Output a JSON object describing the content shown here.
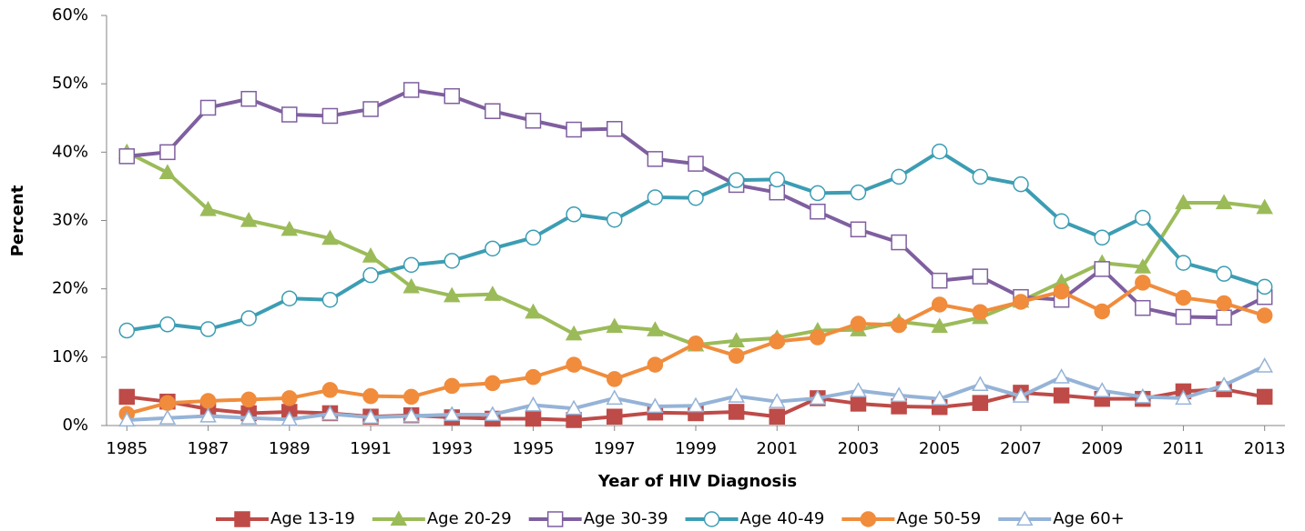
{
  "chart_data": {
    "type": "line",
    "x_label": "Year of HIV Diagnosis",
    "y_label": "Percent",
    "x": [
      1985,
      1986,
      1987,
      1988,
      1989,
      1990,
      1991,
      1992,
      1993,
      1994,
      1995,
      1996,
      1997,
      1998,
      1999,
      2000,
      2001,
      2002,
      2003,
      2004,
      2005,
      2006,
      2007,
      2008,
      2009,
      2010,
      2011,
      2012,
      2013
    ],
    "xlim": [
      1984.5,
      2013.5
    ],
    "xticks": [
      1985,
      1987,
      1989,
      1991,
      1993,
      1995,
      1997,
      1999,
      2001,
      2003,
      2005,
      2007,
      2009,
      2011,
      2013
    ],
    "ylim": [
      0,
      60
    ],
    "yticks": [
      {
        "value": 0,
        "label": "0%"
      },
      {
        "value": 10,
        "label": "10%"
      },
      {
        "value": 20,
        "label": "20%"
      },
      {
        "value": 30,
        "label": "30%"
      },
      {
        "value": 40,
        "label": "40%"
      },
      {
        "value": 50,
        "label": "50%"
      },
      {
        "value": 60,
        "label": "60%"
      }
    ],
    "legend": "bottom",
    "series": [
      {
        "name": "Age 13-19",
        "color": "#be4b48",
        "marker": "square",
        "filled": true,
        "values": [
          4.2,
          3.5,
          2.4,
          1.8,
          2.0,
          1.8,
          1.3,
          1.5,
          1.2,
          1.0,
          1.0,
          0.8,
          1.3,
          1.9,
          1.8,
          2.0,
          1.3,
          4.0,
          3.2,
          2.8,
          2.7,
          3.3,
          4.8,
          4.4,
          3.9,
          3.9,
          5.0,
          5.3,
          4.2
        ]
      },
      {
        "name": "Age 20-29",
        "color": "#9bbb59",
        "marker": "triangle",
        "filled": true,
        "values": [
          40.0,
          37.0,
          31.6,
          30.0,
          28.7,
          27.4,
          24.8,
          20.3,
          19.0,
          19.2,
          16.6,
          13.4,
          14.5,
          14.0,
          11.8,
          12.4,
          12.8,
          13.9,
          14.0,
          15.2,
          14.5,
          15.8,
          18.2,
          21.0,
          23.8,
          23.2,
          32.6,
          32.6,
          31.9
        ]
      },
      {
        "name": "Age 30-39",
        "color": "#7f5f9f",
        "marker": "square",
        "filled": false,
        "values": [
          39.4,
          40.0,
          46.5,
          47.8,
          45.5,
          45.3,
          46.3,
          49.1,
          48.2,
          46.0,
          44.6,
          43.3,
          43.4,
          39.0,
          38.3,
          35.2,
          34.1,
          31.3,
          28.7,
          26.8,
          21.2,
          21.8,
          18.8,
          18.4,
          22.9,
          17.2,
          15.9,
          15.8,
          18.8
        ]
      },
      {
        "name": "Age 40-49",
        "color": "#3c9db3",
        "marker": "circle",
        "filled": false,
        "values": [
          13.9,
          14.8,
          14.1,
          15.7,
          18.6,
          18.4,
          22.0,
          23.5,
          24.1,
          25.9,
          27.5,
          30.9,
          30.1,
          33.4,
          33.3,
          35.9,
          36.0,
          34.0,
          34.1,
          36.4,
          40.1,
          36.4,
          35.3,
          29.9,
          27.5,
          30.4,
          23.8,
          22.2,
          20.3
        ]
      },
      {
        "name": "Age 50-59",
        "color": "#f08c3c",
        "marker": "circle",
        "filled": true,
        "values": [
          1.7,
          3.3,
          3.6,
          3.8,
          4.0,
          5.2,
          4.3,
          4.2,
          5.8,
          6.2,
          7.1,
          8.9,
          6.8,
          8.9,
          12.0,
          10.2,
          12.3,
          12.9,
          14.9,
          14.7,
          17.7,
          16.6,
          18.1,
          19.6,
          16.7,
          20.9,
          18.7,
          17.9,
          16.1
        ]
      },
      {
        "name": "Age 60+",
        "color": "#95b3d7",
        "marker": "triangle",
        "filled": false,
        "values": [
          0.8,
          1.1,
          1.4,
          1.1,
          0.9,
          1.7,
          1.2,
          1.4,
          1.6,
          1.6,
          3.0,
          2.5,
          4.0,
          2.8,
          2.9,
          4.3,
          3.5,
          4.0,
          5.1,
          4.4,
          3.9,
          6.0,
          4.3,
          7.1,
          5.1,
          4.2,
          4.0,
          5.9,
          8.7
        ]
      }
    ]
  }
}
